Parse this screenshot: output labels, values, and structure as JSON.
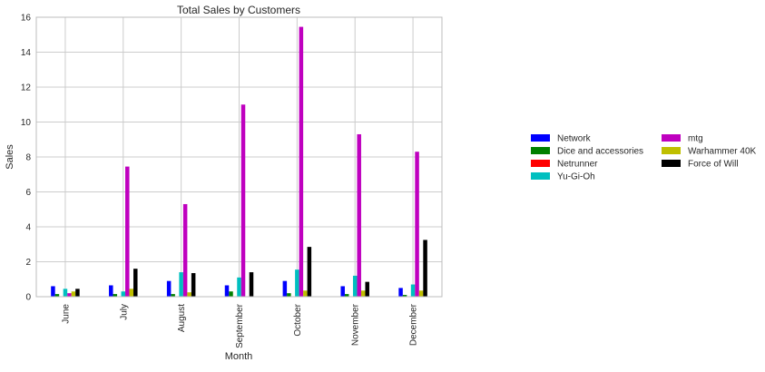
{
  "chart_data": {
    "type": "bar",
    "title": "Total Sales by Customers",
    "xlabel": "Month",
    "ylabel": "Sales",
    "ylim": [
      0,
      16
    ],
    "yticks": [
      0,
      2,
      4,
      6,
      8,
      10,
      12,
      14,
      16
    ],
    "grid": true,
    "legend_position": "right",
    "categories": [
      "June",
      "July",
      "August",
      "September",
      "October",
      "November",
      "December"
    ],
    "series": [
      {
        "name": "Network",
        "color": "#0000ff",
        "values": [
          0.6,
          0.65,
          0.9,
          0.65,
          0.9,
          0.6,
          0.5
        ]
      },
      {
        "name": "Dice and accessories",
        "color": "#008000",
        "values": [
          0.15,
          0.15,
          0.15,
          0.3,
          0.2,
          0.15,
          0.1
        ]
      },
      {
        "name": "Netrunner",
        "color": "#ff0000",
        "values": [
          0.0,
          0.0,
          0.0,
          0.0,
          0.0,
          0.0,
          0.0
        ]
      },
      {
        "name": "Yu-Gi-Oh",
        "color": "#00bfbf",
        "values": [
          0.45,
          0.3,
          1.4,
          1.1,
          1.55,
          1.2,
          0.7
        ]
      },
      {
        "name": "mtg",
        "color": "#bf00bf",
        "values": [
          0.2,
          7.45,
          5.3,
          11.0,
          15.45,
          9.3,
          8.3
        ]
      },
      {
        "name": "Warhammer 40K",
        "color": "#bfbf00",
        "values": [
          0.3,
          0.45,
          0.25,
          0.0,
          0.35,
          0.35,
          0.35
        ]
      },
      {
        "name": "Force of Will",
        "color": "#000000",
        "values": [
          0.45,
          1.6,
          1.35,
          1.4,
          2.85,
          0.85,
          3.25
        ]
      }
    ]
  }
}
